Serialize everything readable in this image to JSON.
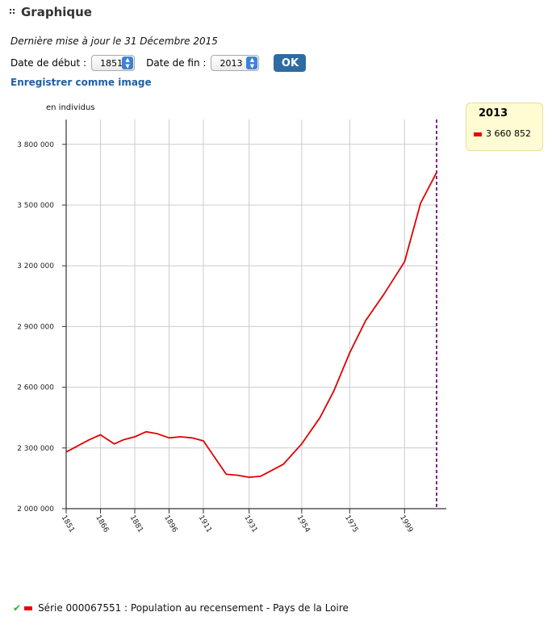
{
  "header": {
    "title": "Graphique"
  },
  "updated": "Dernière mise à jour le 31 Décembre 2015",
  "controls": {
    "start_label": "Date de début :",
    "start_value": "1851",
    "end_label": "Date de fin :",
    "end_value": "2013",
    "ok_label": "OK"
  },
  "save_link": "Enregistrer comme image",
  "chart_data": {
    "type": "line",
    "unit_label": "en individus",
    "x_tick_labels": [
      "1851",
      "1866",
      "1881",
      "1896",
      "1911",
      "1931",
      "1954",
      "1975",
      "1999"
    ],
    "y_tick_labels": [
      "2 000 000",
      "2 300 000",
      "2 600 000",
      "2 900 000",
      "3 200 000",
      "3 500 000",
      "3 800 000"
    ],
    "ylim": [
      2000000,
      3800000
    ],
    "grid": true,
    "series": [
      {
        "color": "#e00000",
        "x": [
          1851,
          1856,
          1861,
          1866,
          1872,
          1876,
          1881,
          1886,
          1891,
          1896,
          1901,
          1906,
          1911,
          1921,
          1926,
          1931,
          1936,
          1946,
          1954,
          1962,
          1968,
          1975,
          1982,
          1990,
          1999,
          2006,
          2013
        ],
        "values": [
          2280000,
          2310000,
          2340000,
          2365000,
          2320000,
          2340000,
          2355000,
          2380000,
          2370000,
          2350000,
          2355000,
          2350000,
          2335000,
          2170000,
          2165000,
          2155000,
          2160000,
          2220000,
          2320000,
          2450000,
          2580000,
          2770000,
          2930000,
          3060000,
          3220000,
          3510000,
          3660852
        ]
      }
    ],
    "marker": {
      "x": 2013,
      "year": "2013",
      "value": "3 660 852"
    },
    "legend": {
      "series_label": "Série 000067551 : Population au recensement - Pays de la Loire"
    }
  }
}
